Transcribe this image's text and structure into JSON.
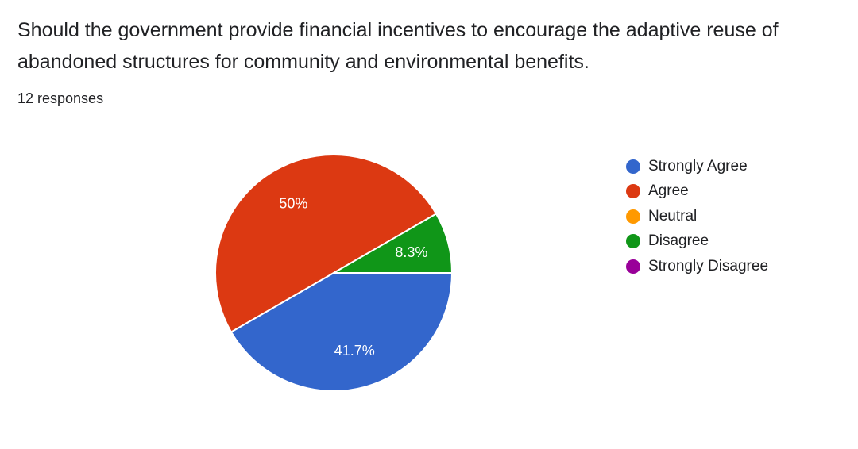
{
  "question": "Should the government provide financial incentives to encourage the adaptive reuse of abandoned structures for community and environmental benefits.",
  "responses_label": "12 responses",
  "chart_data": {
    "type": "pie",
    "total_responses": 12,
    "legend_position": "right",
    "slices": [
      {
        "label": "Strongly Agree",
        "count": 5,
        "percent": 41.7,
        "display": "41.7%",
        "color": "#3366CC"
      },
      {
        "label": "Agree",
        "count": 6,
        "percent": 50.0,
        "display": "50%",
        "color": "#DC3912"
      },
      {
        "label": "Neutral",
        "count": 0,
        "percent": 0.0,
        "display": "",
        "color": "#FF9900"
      },
      {
        "label": "Disagree",
        "count": 1,
        "percent": 8.3,
        "display": "8.3%",
        "color": "#109618"
      },
      {
        "label": "Strongly Disagree",
        "count": 0,
        "percent": 0.0,
        "display": "",
        "color": "#990099"
      }
    ]
  }
}
